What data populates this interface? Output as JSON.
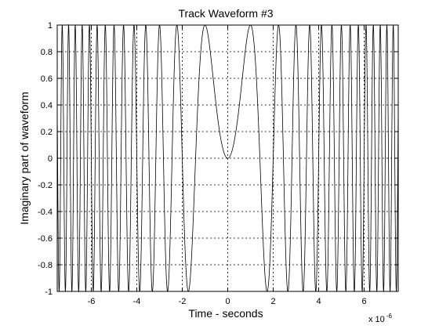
{
  "chart_data": {
    "type": "line",
    "title": "Track Waveform #3",
    "xlabel": "Time - seconds",
    "ylabel": "Imaginary part of waveform",
    "x_multiplier_base": "x 10",
    "x_multiplier_exponent": "-6",
    "xlim": [
      -7.5,
      7.5
    ],
    "ylim": [
      -1,
      1
    ],
    "x_ticks": [
      -6,
      -4,
      -2,
      0,
      2,
      4,
      6
    ],
    "y_ticks": [
      -1,
      -0.8,
      -0.6,
      -0.4,
      -0.2,
      0,
      0.2,
      0.4,
      0.6,
      0.8,
      1
    ],
    "x_tick_labels": [
      "-6",
      "-4",
      "-2",
      "0",
      "2",
      "4",
      "6"
    ],
    "y_tick_labels": [
      "-1",
      "-0.8",
      "-0.6",
      "-0.4",
      "-0.2",
      "0",
      "0.2",
      "0.4",
      "0.6",
      "0.8",
      "1"
    ],
    "grid": "dashed",
    "series": [
      {
        "function": "y = sin(pi * k * t^2), t in microseconds",
        "k": 0.5,
        "samples": 6000,
        "color": "#000000"
      }
    ]
  }
}
